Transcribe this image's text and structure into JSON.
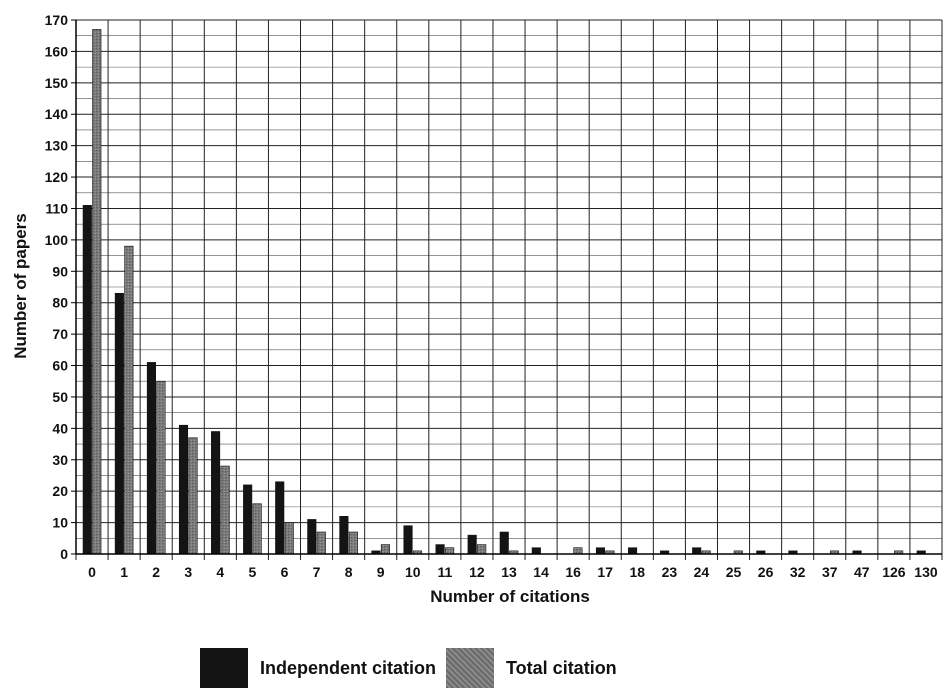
{
  "chart_data": {
    "type": "bar",
    "xlabel": "Number of citations",
    "ylabel": "Number of papers",
    "ylim": [
      0,
      170
    ],
    "y_ticks": [
      0,
      10,
      20,
      30,
      40,
      50,
      60,
      70,
      80,
      90,
      100,
      110,
      120,
      130,
      140,
      150,
      160,
      170
    ],
    "grid": true,
    "legend_position": "bottom",
    "categories": [
      "0",
      "1",
      "2",
      "3",
      "4",
      "5",
      "6",
      "7",
      "8",
      "9",
      "10",
      "11",
      "12",
      "13",
      "14",
      "16",
      "17",
      "18",
      "23",
      "24",
      "25",
      "26",
      "32",
      "37",
      "47",
      "126",
      "130"
    ],
    "series": [
      {
        "name": "Independent citation",
        "color": "#141414",
        "values": [
          111,
          83,
          61,
          41,
          39,
          22,
          23,
          11,
          12,
          1,
          9,
          3,
          6,
          7,
          2,
          0,
          2,
          2,
          1,
          2,
          0,
          1,
          1,
          0,
          1,
          0,
          1
        ]
      },
      {
        "name": "Total citation",
        "color": "#707070",
        "values": [
          167,
          98,
          55,
          37,
          28,
          16,
          10,
          7,
          7,
          3,
          1,
          2,
          3,
          1,
          0,
          2,
          1,
          0,
          0,
          1,
          1,
          0,
          0,
          1,
          0,
          1,
          0
        ]
      }
    ]
  }
}
